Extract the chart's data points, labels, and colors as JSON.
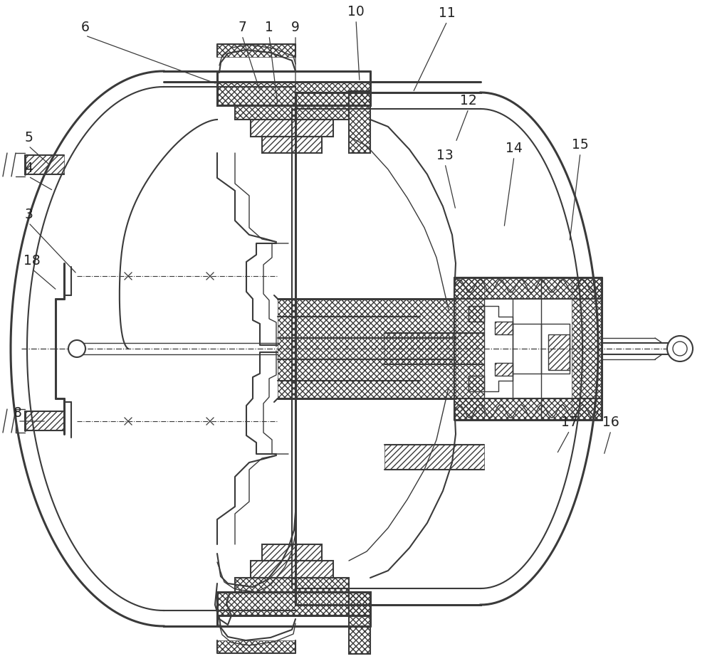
{
  "background_color": "#ffffff",
  "line_color": "#3a3a3a",
  "label_color": "#222222",
  "fig_width": 10.0,
  "fig_height": 9.36,
  "labels_top": [
    [
      "6",
      120,
      48,
      310,
      120
    ],
    [
      "7",
      338,
      48,
      365,
      128
    ],
    [
      "1",
      378,
      48,
      397,
      128
    ],
    [
      "9",
      415,
      48,
      425,
      128
    ],
    [
      "10",
      498,
      25,
      505,
      128
    ],
    [
      "11",
      625,
      28,
      588,
      140
    ]
  ],
  "labels_right": [
    [
      "12",
      657,
      152,
      640,
      200
    ],
    [
      "13",
      625,
      228,
      622,
      285
    ],
    [
      "14",
      722,
      218,
      710,
      310
    ],
    [
      "15",
      815,
      213,
      800,
      300
    ]
  ],
  "labels_left": [
    [
      "5",
      38,
      205,
      75,
      235
    ],
    [
      "4",
      38,
      248,
      80,
      270
    ],
    [
      "3",
      38,
      310,
      108,
      388
    ],
    [
      "18",
      42,
      378,
      76,
      405
    ]
  ],
  "labels_bottom_left": [
    [
      "8",
      22,
      592,
      65,
      592
    ]
  ],
  "labels_bottom_right": [
    [
      "17",
      800,
      603,
      785,
      635
    ],
    [
      "16",
      858,
      603,
      850,
      635
    ]
  ]
}
